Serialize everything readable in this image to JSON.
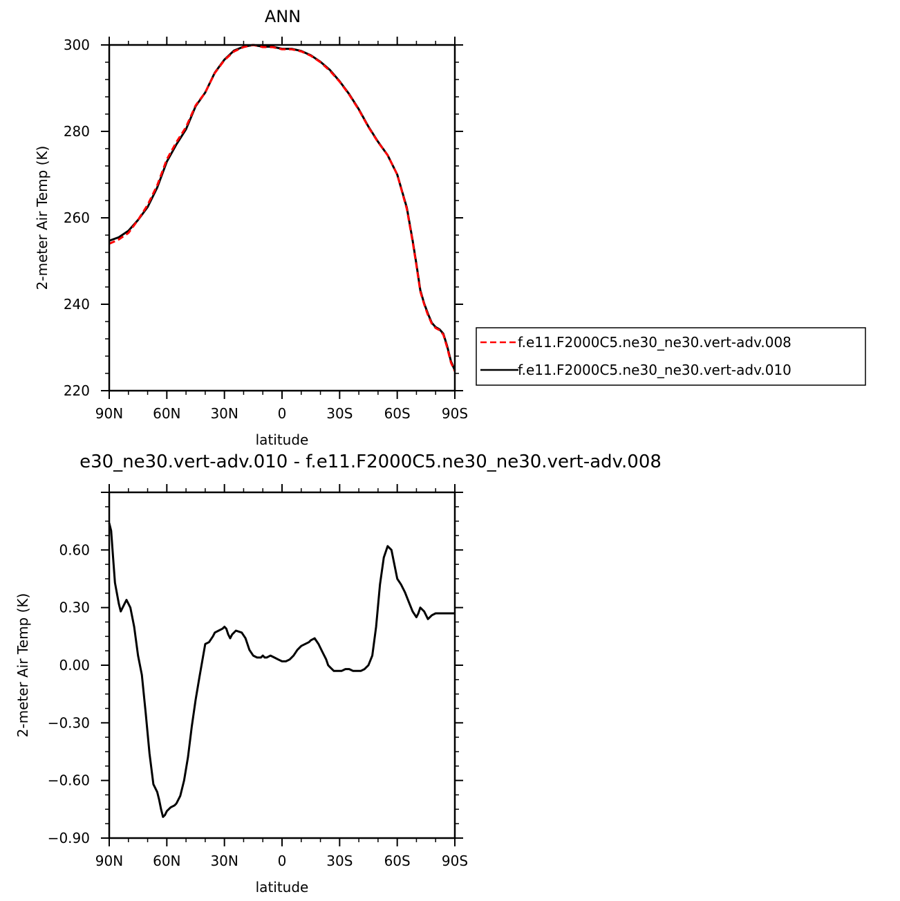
{
  "chart_data": [
    {
      "type": "line",
      "title": "ANN",
      "xlabel": "latitude",
      "ylabel": "2-meter Air Temp (K)",
      "x_direction": "90N to 90S",
      "xlim": [
        90,
        -90
      ],
      "ylim": [
        220,
        300
      ],
      "xticks": [
        90,
        60,
        30,
        0,
        -30,
        -60,
        -90
      ],
      "xtick_labels": [
        "90N",
        "60N",
        "30N",
        "0",
        "30S",
        "60S",
        "90S"
      ],
      "yticks": [
        220,
        240,
        260,
        280,
        300
      ],
      "ytick_labels": [
        "220",
        "240",
        "260",
        "280",
        "300"
      ],
      "grid": false,
      "legend": "right, outside plot",
      "x": [
        90,
        85,
        80,
        75,
        70,
        65,
        60,
        55,
        50,
        45,
        40,
        35,
        30,
        25,
        20,
        15,
        10,
        5,
        0,
        -5,
        -10,
        -15,
        -20,
        -25,
        -30,
        -35,
        -40,
        -45,
        -50,
        -55,
        -60,
        -65,
        -68,
        -70,
        -72,
        -74,
        -76,
        -78,
        -80,
        -82,
        -84,
        -86,
        -88,
        -90
      ],
      "series": [
        {
          "name": "f.e11.F2000C5.ne30_ne30.vert-adv.008",
          "color": "#ff0000",
          "dash": "dashed",
          "values": [
            254.0,
            255.0,
            256.5,
            259.5,
            263.0,
            267.5,
            273.5,
            277.5,
            281.0,
            286.0,
            289.0,
            293.5,
            296.5,
            298.5,
            299.5,
            300.0,
            299.5,
            299.5,
            299.0,
            299.0,
            298.5,
            297.5,
            296.0,
            294.0,
            291.5,
            288.5,
            285.0,
            281.0,
            277.5,
            274.5,
            270.0,
            262.0,
            254.5,
            249.0,
            243.0,
            240.0,
            237.5,
            235.5,
            234.5,
            234.0,
            233.0,
            230.0,
            226.5,
            224.5
          ]
        },
        {
          "name": "f.e11.F2000C5.ne30_ne30.vert-adv.010",
          "color": "#000000",
          "dash": "solid",
          "values": [
            254.7,
            255.5,
            257.0,
            259.5,
            262.5,
            267.0,
            273.0,
            277.0,
            280.5,
            285.8,
            289.0,
            293.6,
            296.6,
            298.7,
            299.6,
            300.0,
            299.6,
            299.6,
            299.1,
            299.1,
            298.6,
            297.6,
            296.1,
            294.2,
            291.6,
            288.6,
            285.1,
            281.1,
            277.6,
            274.5,
            270.0,
            262.3,
            254.8,
            249.3,
            243.3,
            240.2,
            237.8,
            235.7,
            234.7,
            234.2,
            233.2,
            230.3,
            226.8,
            224.7
          ]
        }
      ]
    },
    {
      "type": "line",
      "title": "e30_ne30.vert-adv.010 - f.e11.F2000C5.ne30_ne30.vert-adv.008",
      "xlabel": "latitude",
      "ylabel": "2-meter Air Temp (K)",
      "x_direction": "90N to 90S",
      "xlim": [
        90,
        -90
      ],
      "ylim": [
        -0.9,
        0.9
      ],
      "xticks": [
        90,
        60,
        30,
        0,
        -30,
        -60,
        -90
      ],
      "xtick_labels": [
        "90N",
        "60N",
        "30N",
        "0",
        "30S",
        "60S",
        "90S"
      ],
      "yticks": [
        -0.9,
        -0.6,
        -0.3,
        0.0,
        0.3,
        0.6
      ],
      "ytick_labels": [
        "-0.90",
        "-0.60",
        "-0.30",
        "0.00",
        "0.30",
        "0.60"
      ],
      "grid": false,
      "series": [
        {
          "color": "#000000",
          "dash": "solid",
          "x": [
            90,
            89,
            88,
            87,
            85,
            84,
            82,
            81,
            79,
            77,
            75,
            73,
            71,
            69,
            67,
            65,
            64,
            63,
            62,
            61,
            60,
            58,
            56,
            55,
            53,
            51,
            49,
            47,
            45,
            43,
            40,
            38,
            36,
            35,
            33,
            31,
            30,
            29,
            28,
            27,
            26,
            24,
            21,
            19,
            17,
            15,
            13,
            11,
            10,
            9,
            8,
            6,
            4,
            2,
            0,
            -2,
            -4,
            -6,
            -8,
            -10,
            -12,
            -14,
            -15,
            -17,
            -19,
            -21,
            -23,
            -24,
            -25,
            -27,
            -29,
            -31,
            -33,
            -35,
            -37,
            -39,
            -41,
            -43,
            -45,
            -47,
            -49,
            -51,
            -53,
            -55,
            -57,
            -59,
            -60,
            -62,
            -64,
            -66,
            -68,
            -70,
            -71,
            -72,
            -74,
            -76,
            -78,
            -80,
            -82,
            -83,
            -84,
            -85,
            -86,
            -87,
            -88,
            -89,
            -90
          ],
          "values": [
            0.74,
            0.7,
            0.56,
            0.43,
            0.32,
            0.28,
            0.32,
            0.34,
            0.3,
            0.2,
            0.05,
            -0.05,
            -0.25,
            -0.46,
            -0.62,
            -0.66,
            -0.7,
            -0.75,
            -0.79,
            -0.78,
            -0.76,
            -0.74,
            -0.73,
            -0.72,
            -0.68,
            -0.6,
            -0.48,
            -0.32,
            -0.18,
            -0.06,
            0.11,
            0.12,
            0.15,
            0.17,
            0.18,
            0.19,
            0.2,
            0.19,
            0.16,
            0.14,
            0.16,
            0.18,
            0.17,
            0.14,
            0.08,
            0.05,
            0.04,
            0.04,
            0.05,
            0.04,
            0.04,
            0.05,
            0.04,
            0.03,
            0.02,
            0.02,
            0.03,
            0.05,
            0.08,
            0.1,
            0.11,
            0.12,
            0.13,
            0.14,
            0.11,
            0.07,
            0.03,
            0.0,
            -0.01,
            -0.03,
            -0.03,
            -0.03,
            -0.02,
            -0.02,
            -0.03,
            -0.03,
            -0.03,
            -0.02,
            0.0,
            0.05,
            0.2,
            0.42,
            0.56,
            0.62,
            0.6,
            0.5,
            0.45,
            0.42,
            0.38,
            0.33,
            0.28,
            0.25,
            0.27,
            0.3,
            0.28,
            0.24,
            0.26,
            0.27,
            0.27,
            0.27,
            0.27,
            0.27,
            0.27,
            0.27,
            0.27,
            0.27,
            0.27
          ]
        }
      ]
    }
  ]
}
